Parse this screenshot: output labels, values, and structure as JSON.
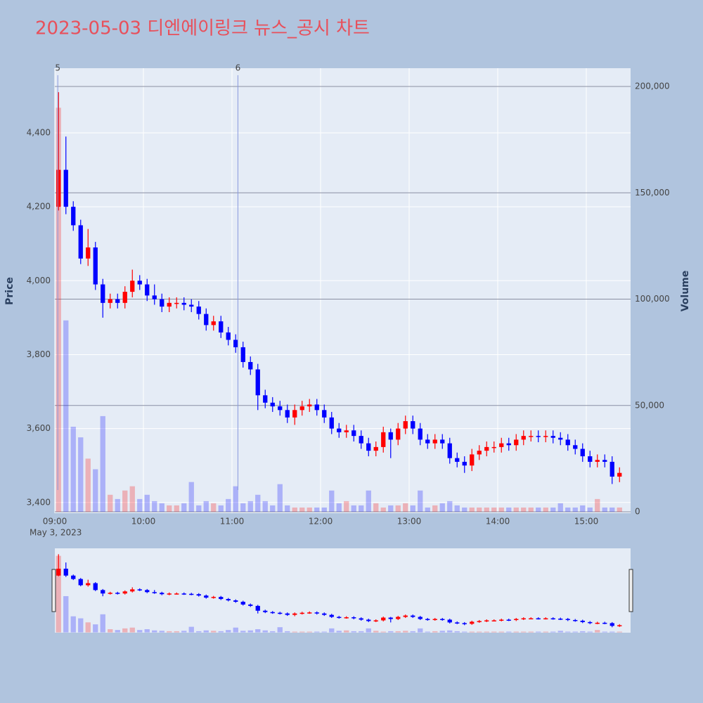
{
  "chart_data": {
    "type": "candlestick",
    "title": "2023-05-03 디엔에이링크 뉴스_공시 차트",
    "x": [
      "2023-05-03 09:00",
      "2023-05-03 09:05",
      "2023-05-03 09:10",
      "2023-05-03 09:15",
      "2023-05-03 09:20",
      "2023-05-03 09:25",
      "2023-05-03 09:30",
      "2023-05-03 09:35",
      "2023-05-03 09:40",
      "2023-05-03 09:45",
      "2023-05-03 09:50",
      "2023-05-03 09:55",
      "2023-05-03 10:00",
      "2023-05-03 10:05",
      "2023-05-03 10:10",
      "2023-05-03 10:15",
      "2023-05-03 10:20",
      "2023-05-03 10:25",
      "2023-05-03 10:30",
      "2023-05-03 10:35",
      "2023-05-03 10:40",
      "2023-05-03 10:45",
      "2023-05-03 10:50",
      "2023-05-03 10:55",
      "2023-05-03 11:00",
      "2023-05-03 11:05",
      "2023-05-03 11:10",
      "2023-05-03 11:15",
      "2023-05-03 11:20",
      "2023-05-03 11:25",
      "2023-05-03 11:30",
      "2023-05-03 11:35",
      "2023-05-03 11:40",
      "2023-05-03 11:45",
      "2023-05-03 11:50",
      "2023-05-03 11:55",
      "2023-05-03 12:00",
      "2023-05-03 12:05",
      "2023-05-03 12:10",
      "2023-05-03 12:15",
      "2023-05-03 12:20",
      "2023-05-03 12:25",
      "2023-05-03 12:30",
      "2023-05-03 12:35",
      "2023-05-03 12:40",
      "2023-05-03 12:45",
      "2023-05-03 12:50",
      "2023-05-03 12:55",
      "2023-05-03 13:00",
      "2023-05-03 13:05",
      "2023-05-03 13:10",
      "2023-05-03 13:15",
      "2023-05-03 13:20",
      "2023-05-03 13:25",
      "2023-05-03 13:30",
      "2023-05-03 13:35",
      "2023-05-03 13:40",
      "2023-05-03 13:45",
      "2023-05-03 13:50",
      "2023-05-03 13:55",
      "2023-05-03 14:00",
      "2023-05-03 14:05",
      "2023-05-03 14:10",
      "2023-05-03 14:15",
      "2023-05-03 14:20",
      "2023-05-03 14:25",
      "2023-05-03 14:30",
      "2023-05-03 14:35",
      "2023-05-03 14:40",
      "2023-05-03 14:45",
      "2023-05-03 14:50",
      "2023-05-03 14:55",
      "2023-05-03 15:00",
      "2023-05-03 15:05",
      "2023-05-03 15:10",
      "2023-05-03 15:15",
      "2023-05-03 15:20"
    ],
    "open": [
      4200,
      4300,
      4200,
      4150,
      4060,
      4090,
      3990,
      3940,
      3950,
      3940,
      3970,
      4000,
      3990,
      3960,
      3950,
      3930,
      3940,
      3940,
      3935,
      3930,
      3910,
      3880,
      3890,
      3860,
      3840,
      3820,
      3780,
      3760,
      3690,
      3670,
      3660,
      3650,
      3630,
      3650,
      3660,
      3665,
      3650,
      3630,
      3600,
      3590,
      3595,
      3580,
      3560,
      3540,
      3550,
      3590,
      3570,
      3600,
      3620,
      3600,
      3570,
      3560,
      3570,
      3560,
      3520,
      3510,
      3500,
      3530,
      3540,
      3550,
      3550,
      3560,
      3555,
      3570,
      3580,
      3580,
      3578,
      3580,
      3575,
      3570,
      3555,
      3545,
      3525,
      3510,
      3515,
      3510,
      3470
    ],
    "high": [
      4510,
      4390,
      4215,
      4165,
      4140,
      4105,
      4005,
      3965,
      3965,
      3985,
      4030,
      4015,
      4005,
      3990,
      3965,
      3955,
      3955,
      3955,
      3950,
      3945,
      3925,
      3905,
      3905,
      3875,
      3855,
      3835,
      3795,
      3775,
      3705,
      3685,
      3675,
      3665,
      3665,
      3675,
      3680,
      3680,
      3665,
      3645,
      3615,
      3610,
      3610,
      3595,
      3575,
      3565,
      3605,
      3600,
      3615,
      3635,
      3635,
      3615,
      3585,
      3585,
      3585,
      3575,
      3535,
      3525,
      3545,
      3555,
      3565,
      3565,
      3575,
      3575,
      3585,
      3595,
      3595,
      3595,
      3595,
      3595,
      3590,
      3585,
      3570,
      3560,
      3540,
      3530,
      3530,
      3525,
      3495
    ],
    "low": [
      4190,
      4180,
      4135,
      4045,
      4040,
      3975,
      3900,
      3925,
      3925,
      3925,
      3955,
      3975,
      3945,
      3935,
      3915,
      3915,
      3925,
      3920,
      3915,
      3895,
      3865,
      3865,
      3845,
      3825,
      3805,
      3765,
      3745,
      3650,
      3655,
      3645,
      3635,
      3615,
      3610,
      3635,
      3645,
      3635,
      3615,
      3585,
      3575,
      3575,
      3565,
      3545,
      3525,
      3525,
      3535,
      3520,
      3555,
      3585,
      3585,
      3555,
      3545,
      3545,
      3545,
      3505,
      3495,
      3480,
      3485,
      3515,
      3525,
      3535,
      3535,
      3540,
      3540,
      3555,
      3565,
      3563,
      3563,
      3560,
      3555,
      3540,
      3530,
      3510,
      3495,
      3495,
      3495,
      3450,
      3455
    ],
    "close": [
      4300,
      4200,
      4150,
      4060,
      4090,
      3990,
      3940,
      3950,
      3940,
      3970,
      4000,
      3990,
      3960,
      3950,
      3930,
      3940,
      3940,
      3935,
      3930,
      3910,
      3880,
      3890,
      3860,
      3840,
      3820,
      3780,
      3760,
      3690,
      3670,
      3660,
      3650,
      3630,
      3650,
      3660,
      3665,
      3650,
      3630,
      3600,
      3590,
      3595,
      3580,
      3560,
      3540,
      3550,
      3590,
      3570,
      3600,
      3620,
      3600,
      3570,
      3560,
      3570,
      3560,
      3520,
      3510,
      3500,
      3530,
      3540,
      3550,
      3550,
      3560,
      3555,
      3570,
      3580,
      3580,
      3578,
      3580,
      3575,
      3570,
      3555,
      3545,
      3525,
      3510,
      3515,
      3510,
      3470,
      3480
    ],
    "volume": [
      190000,
      90000,
      40000,
      35000,
      25000,
      20000,
      45000,
      8000,
      6000,
      10000,
      12000,
      6000,
      8000,
      5000,
      4000,
      3000,
      3000,
      4000,
      14000,
      3000,
      5000,
      4000,
      3000,
      6000,
      12000,
      4000,
      5000,
      8000,
      5000,
      3000,
      13000,
      3000,
      2000,
      2000,
      2000,
      2000,
      2000,
      10000,
      4000,
      5000,
      3000,
      3000,
      10000,
      4000,
      2000,
      3000,
      3000,
      4000,
      3000,
      10000,
      2000,
      3000,
      4000,
      5000,
      3000,
      2000,
      2000,
      2000,
      2000,
      2000,
      2000,
      2000,
      2000,
      2000,
      2000,
      2000,
      2000,
      2000,
      4000,
      2000,
      2000,
      3000,
      2000,
      6000,
      2000,
      2000,
      2000
    ],
    "increasing_color": "#ff0000",
    "decreasing_color": "#0000ff",
    "ylabel": "Price",
    "y2label": "Volume",
    "xlim": [
      "2023-05-03 09:00",
      "2023-05-03 15:30"
    ],
    "xticks": [
      {
        "value": "2023-05-03 09:00",
        "label": "09:00"
      },
      {
        "value": "2023-05-03 10:00",
        "label": "10:00"
      },
      {
        "value": "2023-05-03 11:00",
        "label": "11:00"
      },
      {
        "value": "2023-05-03 12:00",
        "label": "12:00"
      },
      {
        "value": "2023-05-03 13:00",
        "label": "13:00"
      },
      {
        "value": "2023-05-03 14:00",
        "label": "14:00"
      },
      {
        "value": "2023-05-03 15:00",
        "label": "15:00"
      }
    ],
    "x_date_label": "May 3, 2023",
    "ylim": [
      3371,
      4575
    ],
    "yticks": [
      {
        "value": 3400,
        "label": "3,400"
      },
      {
        "value": 3600,
        "label": "3,600"
      },
      {
        "value": 3800,
        "label": "3,800"
      },
      {
        "value": 4000,
        "label": "4,000"
      },
      {
        "value": 4200,
        "label": "4,200"
      },
      {
        "value": 4400,
        "label": "4,400"
      }
    ],
    "y2lim": [
      -660,
      208600
    ],
    "y2ticks": [
      0,
      {
        "value": 50000,
        "label": "50,000"
      },
      {
        "value": 100000,
        "label": "100,000"
      },
      {
        "value": 150000,
        "label": "150,000"
      },
      {
        "value": 200000,
        "label": "200,000"
      }
    ],
    "annotations": [
      {
        "x": "2023-05-03 09:02",
        "text": "5"
      },
      {
        "x": "2023-05-03 11:04",
        "text": "6"
      }
    ],
    "grid": true,
    "rangeslider": true
  }
}
